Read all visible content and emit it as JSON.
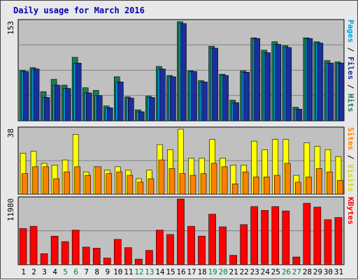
{
  "chart_data": {
    "type": "bar",
    "title": "Daily usage for March 2016",
    "days": [
      "1",
      "2",
      "3",
      "4",
      "5",
      "6",
      "7",
      "8",
      "9",
      "10",
      "11",
      "12",
      "13",
      "14",
      "15",
      "16",
      "17",
      "18",
      "19",
      "20",
      "21",
      "22",
      "23",
      "24",
      "25",
      "26",
      "27",
      "28",
      "29",
      "30",
      "31"
    ],
    "weekend_days": [
      "5",
      "6",
      "12",
      "13",
      "19",
      "20",
      "26",
      "27"
    ],
    "colors": {
      "hits": "#1e7a50",
      "files": "#00a0e0",
      "pages": "#1a2f9a",
      "visits": "#ffff00",
      "sites": "#ff8000",
      "kbytes": "#ff0000",
      "weekday_label": "#000000",
      "weekend_label": "#008040",
      "title": "#0000b0",
      "plot_bg": "#c0c0c0"
    },
    "panels": [
      {
        "id": "hits-files-pages",
        "max_label": "153",
        "max": 153,
        "label_parts": [
          {
            "text": "Pages",
            "color": "#00a0e0"
          },
          {
            "text": " / ",
            "color": "#000000"
          },
          {
            "text": "Files",
            "color": "#1a2f9a"
          },
          {
            "text": " / ",
            "color": "#000000"
          },
          {
            "text": "Hits",
            "color": "#1e7a50"
          }
        ],
        "series": [
          {
            "name": "Hits",
            "color": "#1e7a50",
            "values": [
              78,
              82,
              45,
              64,
              55,
              98,
              51,
              47,
              23,
              68,
              37,
              17,
              38,
              84,
              70,
              153,
              77,
              62,
              115,
              72,
              32,
              77,
              128,
              109,
              122,
              116,
              21,
              128,
              122,
              93,
              91
            ]
          },
          {
            "name": "Files",
            "color": "#00a0e0",
            "values": [
              76,
              80,
              36,
              55,
              50,
              89,
              43,
              39,
              20,
              60,
              35,
              14,
              36,
              80,
              68,
              150,
              76,
              60,
              112,
              70,
              28,
              75,
              127,
              105,
              118,
              113,
              18,
              127,
              120,
              89,
              89
            ]
          },
          {
            "name": "Pages",
            "color": "#1a2f9a",
            "values": [
              76,
              80,
              36,
              55,
              50,
              89,
              43,
              39,
              20,
              60,
              35,
              14,
              36,
              80,
              68,
              150,
              76,
              60,
              112,
              70,
              28,
              75,
              127,
              105,
              118,
              113,
              18,
              127,
              120,
              89,
              89
            ]
          }
        ]
      },
      {
        "id": "visits-sites",
        "max_label": "38",
        "max": 38,
        "label_parts": [
          {
            "text": "Sites",
            "color": "#ff8000"
          },
          {
            "text": " / ",
            "color": "#000000"
          },
          {
            "text": "Visits",
            "color": "#d8d800"
          }
        ],
        "series": [
          {
            "name": "Visits",
            "color": "#ffff00",
            "values": [
              24,
              25,
              18,
              17,
              20,
              35,
              13,
              16,
              14,
              16,
              14,
              9,
              14,
              29,
              26,
              38,
              21,
              21,
              32,
              21,
              17,
              17,
              31,
              26,
              32,
              32,
              11,
              30,
              28,
              26,
              22
            ]
          },
          {
            "name": "Sites",
            "color": "#ff8000",
            "values": [
              12,
              16,
              16,
              9,
              13,
              16,
              11,
              16,
              12,
              13,
              11,
              7,
              9,
              20,
              15,
              12,
              11,
              12,
              18,
              16,
              6,
              13,
              10,
              10,
              11,
              18,
              7,
              10,
              15,
              13,
              8
            ]
          }
        ]
      },
      {
        "id": "kbytes",
        "max_label": "11980",
        "max": 11980,
        "label_parts": [
          {
            "text": "KBytes",
            "color": "#ff0000"
          }
        ],
        "series": [
          {
            "name": "KBytes",
            "color": "#ff0000",
            "values": [
              6600,
              7000,
              2000,
              5200,
              4200,
              6300,
              3200,
              3000,
              1200,
              4600,
              3100,
              1000,
              2600,
              6300,
              5500,
              11980,
              7000,
              5200,
              9200,
              6900,
              1700,
              7300,
              10600,
              9900,
              10600,
              9800,
              1400,
              11200,
              10500,
              8200,
              8600
            ]
          }
        ]
      }
    ]
  }
}
